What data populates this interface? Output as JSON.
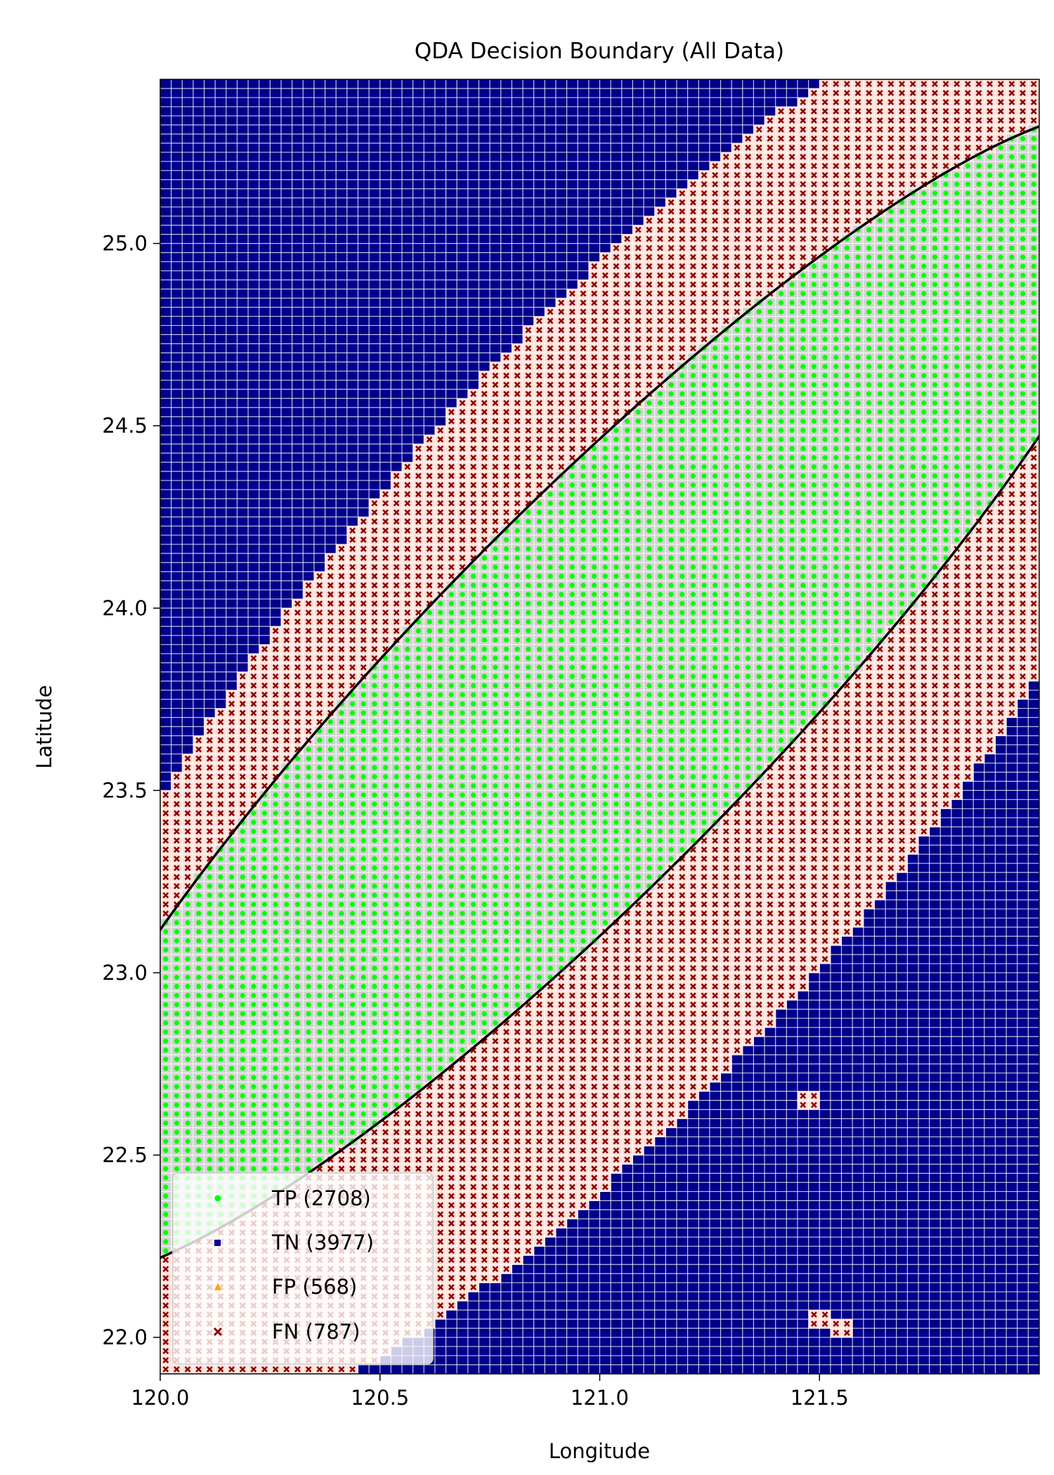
{
  "chart_data": {
    "type": "scatter",
    "title": "QDA Decision Boundary (All Data)",
    "xlabel": "Longitude",
    "ylabel": "Latitude",
    "xlim": [
      120.0,
      122.0
    ],
    "ylim": [
      21.9,
      25.45
    ],
    "xticks": [
      "120.0",
      "120.5",
      "121.0",
      "121.5"
    ],
    "xtick_values": [
      120.0,
      120.5,
      121.0,
      121.5
    ],
    "yticks": [
      "22.0",
      "22.5",
      "23.0",
      "23.5",
      "24.0",
      "24.5",
      "25.0"
    ],
    "ytick_values": [
      22.0,
      22.5,
      23.0,
      23.5,
      24.0,
      24.5,
      25.0
    ],
    "grid": true,
    "grid_spacing": 0.025,
    "legend_location": "lower-left",
    "series": [
      {
        "name": "TP (2708)",
        "marker": "circle",
        "color": "#00ff00",
        "count": 2708
      },
      {
        "name": "TN (3977)",
        "marker": "square",
        "color": "#00008b",
        "count": 3977
      },
      {
        "name": "FP (568)",
        "marker": "triangle",
        "color": "#ffa500",
        "count": 568
      },
      {
        "name": "FN (787)",
        "marker": "x",
        "color": "#8b0000",
        "count": 787
      }
    ],
    "decision_boundary": {
      "type": "ellipse",
      "color": "#000000",
      "center": [
        120.98,
        23.76
      ],
      "angle_deg": 51.5,
      "semi_major": 2.02,
      "semi_minor": 0.44
    },
    "true_region": {
      "type": "ellipse",
      "center": [
        121.04,
        23.72
      ],
      "angle_deg": 57,
      "semi_major": 2.38,
      "semi_minor": 0.78
    },
    "isolated_fn_points": [
      [
        121.49,
        22.05
      ],
      [
        121.56,
        22.03
      ],
      [
        121.48,
        22.65
      ]
    ]
  }
}
